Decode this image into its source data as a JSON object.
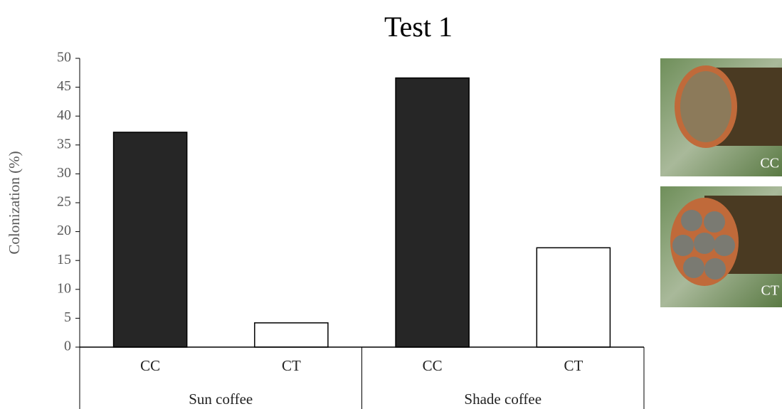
{
  "chart_data": {
    "type": "bar",
    "title": "Test 1",
    "y_label": "Colonization (%)",
    "categories": [
      "CC",
      "CT",
      "CC",
      "CT"
    ],
    "groups": [
      "Sun coffee",
      "Shade coffee"
    ],
    "values": [
      37.2,
      4.2,
      46.6,
      17.2
    ],
    "colors": [
      "#262626",
      "#ffffff",
      "#262626",
      "#ffffff"
    ],
    "ylim": [
      0,
      50
    ],
    "yticks": [
      0,
      5,
      10,
      15,
      20,
      25,
      30,
      35,
      40,
      45,
      50
    ],
    "photo_labels": [
      "CC",
      "CT"
    ]
  }
}
